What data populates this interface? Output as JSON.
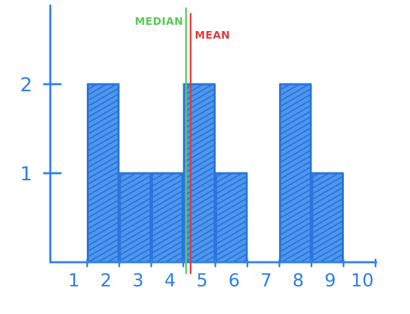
{
  "chart_data": {
    "type": "bar",
    "title": "",
    "xlabel": "",
    "ylabel": "",
    "categories": [
      "1",
      "2",
      "3",
      "4",
      "5",
      "6",
      "7",
      "8",
      "9",
      "10"
    ],
    "values": [
      0,
      2,
      1,
      1,
      2,
      1,
      0,
      2,
      1,
      0
    ],
    "ylim": [
      0,
      2.8
    ],
    "yticks": [
      "1",
      "2"
    ],
    "grid": false,
    "annotations": [
      {
        "label": "MEDIAN",
        "x": 4.5,
        "color": "#5cc85a"
      },
      {
        "label": "MEAN",
        "x": 4.6,
        "color": "#e23b3b"
      }
    ],
    "colors": {
      "bar": "#2f80e6",
      "axis": "#2f80e6"
    }
  }
}
